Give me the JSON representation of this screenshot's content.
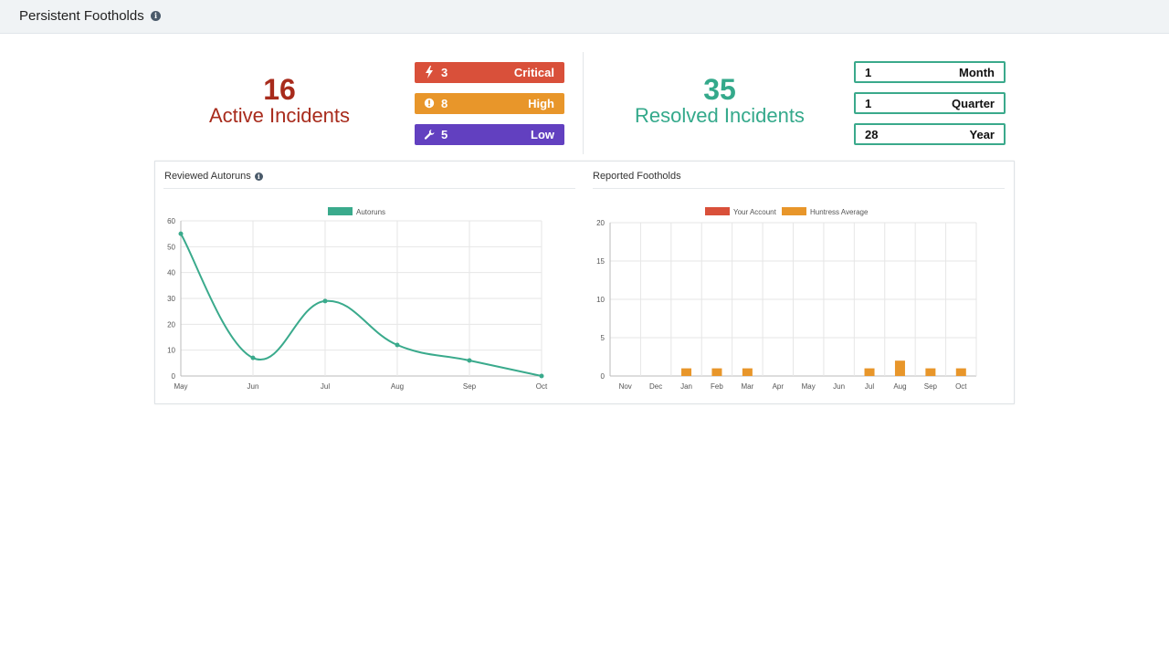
{
  "header": {
    "title": "Persistent Footholds"
  },
  "summary": {
    "active": {
      "count": "16",
      "label": "Active Incidents"
    },
    "resolved": {
      "count": "35",
      "label": "Resolved Incidents"
    },
    "severity": [
      {
        "count": "3",
        "label": "Critical",
        "color": "#d9503a",
        "icon": "bolt-icon"
      },
      {
        "count": "8",
        "label": "High",
        "color": "#e8962a",
        "icon": "exclamation-circle-icon"
      },
      {
        "count": "5",
        "label": "Low",
        "color": "#6240c0",
        "icon": "wrench-icon"
      }
    ],
    "periods": [
      {
        "count": "1",
        "label": "Month"
      },
      {
        "count": "1",
        "label": "Quarter"
      },
      {
        "count": "28",
        "label": "Year"
      }
    ]
  },
  "panels": {
    "left_title": "Reviewed Autoruns",
    "right_title": "Reported Footholds"
  },
  "chart_data": [
    {
      "type": "line",
      "categories": [
        "May",
        "Jun",
        "Jul",
        "Aug",
        "Sep",
        "Oct"
      ],
      "series": [
        {
          "name": "Autoruns",
          "values": [
            55,
            7,
            29,
            12,
            6,
            0
          ],
          "color": "#3aaa8c"
        }
      ],
      "yticks": [
        0,
        10,
        20,
        30,
        40,
        50,
        60
      ],
      "ylim": [
        0,
        60
      ],
      "legend": "top-center",
      "grid": true
    },
    {
      "type": "bar",
      "categories": [
        "Nov",
        "Dec",
        "Jan",
        "Feb",
        "Mar",
        "Apr",
        "May",
        "Jun",
        "Jul",
        "Aug",
        "Sep",
        "Oct"
      ],
      "series": [
        {
          "name": "Your Account",
          "values": [
            0,
            0,
            0,
            0,
            0,
            0,
            0,
            0,
            0,
            0,
            0,
            0
          ],
          "color": "#d9503a"
        },
        {
          "name": "Huntress Average",
          "values": [
            0,
            0,
            1,
            1,
            1,
            0,
            0,
            0,
            1,
            2,
            1,
            1
          ],
          "color": "#e8962a"
        }
      ],
      "yticks": [
        0,
        5,
        10,
        15,
        20
      ],
      "ylim": [
        0,
        20
      ],
      "legend": "top-center",
      "grid": true
    }
  ]
}
